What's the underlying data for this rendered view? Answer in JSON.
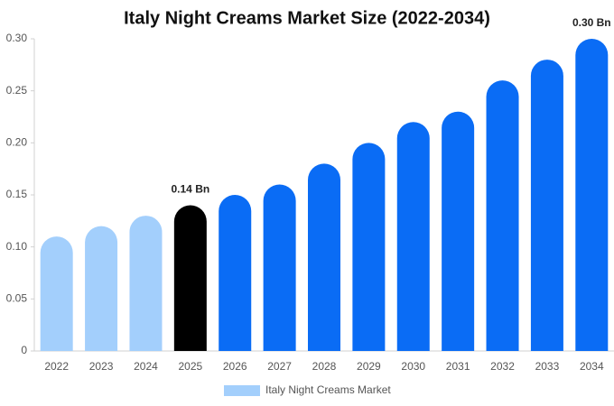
{
  "chart_data": {
    "type": "bar",
    "title": "Italy Night Creams Market Size (2022-2034)",
    "categories": [
      "2022",
      "2023",
      "2024",
      "2025",
      "2026",
      "2027",
      "2028",
      "2029",
      "2030",
      "2031",
      "2032",
      "2033",
      "2034"
    ],
    "series": [
      {
        "name": "Italy Night Creams Market",
        "color": "#a3cffc",
        "values": [
          0.11,
          0.12,
          0.13,
          0.14,
          0.15,
          0.16,
          0.18,
          0.2,
          0.22,
          0.23,
          0.26,
          0.28,
          0.3
        ],
        "colors": [
          "#a3cffc",
          "#a3cffc",
          "#a3cffc",
          "#000000",
          "#0a6cf5",
          "#0a6cf5",
          "#0a6cf5",
          "#0a6cf5",
          "#0a6cf5",
          "#0a6cf5",
          "#0a6cf5",
          "#0a6cf5",
          "#0a6cf5"
        ],
        "value_labels": [
          null,
          null,
          null,
          "0.14 Bn",
          null,
          null,
          null,
          null,
          null,
          null,
          null,
          null,
          "0.30 Bn"
        ]
      }
    ],
    "ylim": [
      0,
      0.3
    ],
    "yticks": [
      0,
      0.05,
      {
        "value": 0.1,
        "label": "0.10"
      },
      0.15,
      {
        "value": 0.2,
        "label": "0.20"
      },
      0.25,
      {
        "value": 0.3,
        "label": "0.30"
      }
    ],
    "grid": false
  }
}
